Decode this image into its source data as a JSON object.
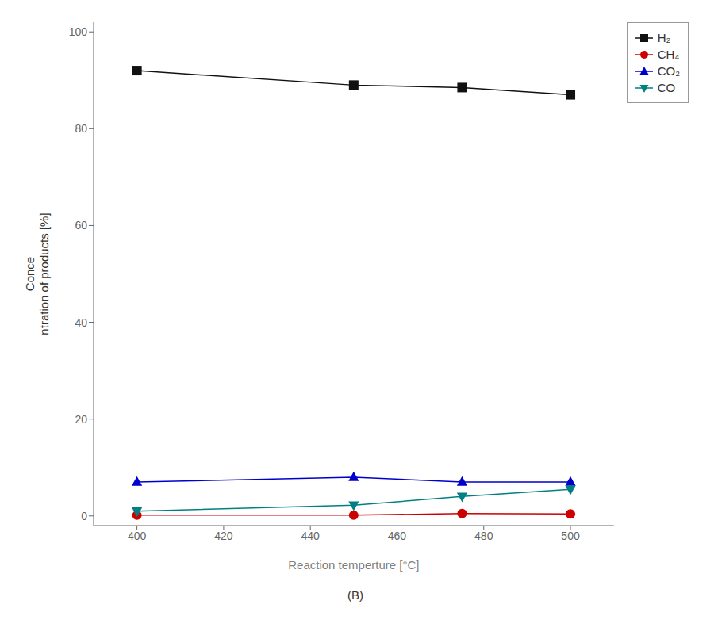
{
  "chart_data": {
    "type": "line",
    "xlabel": "Reaction temperture [°C]",
    "ylabel": "Conce\nntration of products [%]",
    "caption": "(B)",
    "x": [
      400,
      450,
      475,
      500
    ],
    "series": [
      {
        "name": "H₂",
        "color": "#111111",
        "marker": "square",
        "values": [
          92.0,
          89.0,
          88.5,
          87.0
        ]
      },
      {
        "name": "CH₄",
        "color": "#cc0000",
        "marker": "circle",
        "values": [
          0.15,
          0.15,
          0.5,
          0.4
        ]
      },
      {
        "name": "CO₂",
        "color": "#0000cc",
        "marker": "triangle-up",
        "values": [
          7.0,
          8.0,
          7.0,
          7.0
        ]
      },
      {
        "name": "CO",
        "color": "#008080",
        "marker": "triangle-down",
        "values": [
          1.0,
          2.2,
          4.0,
          5.5
        ]
      }
    ],
    "xlim": [
      390,
      510
    ],
    "xticks": [
      400,
      420,
      440,
      460,
      480,
      500
    ],
    "ylim": [
      -2,
      102
    ],
    "yticks": [
      0,
      20,
      40,
      60,
      80,
      100
    ],
    "grid": false,
    "legend": "upper right"
  }
}
